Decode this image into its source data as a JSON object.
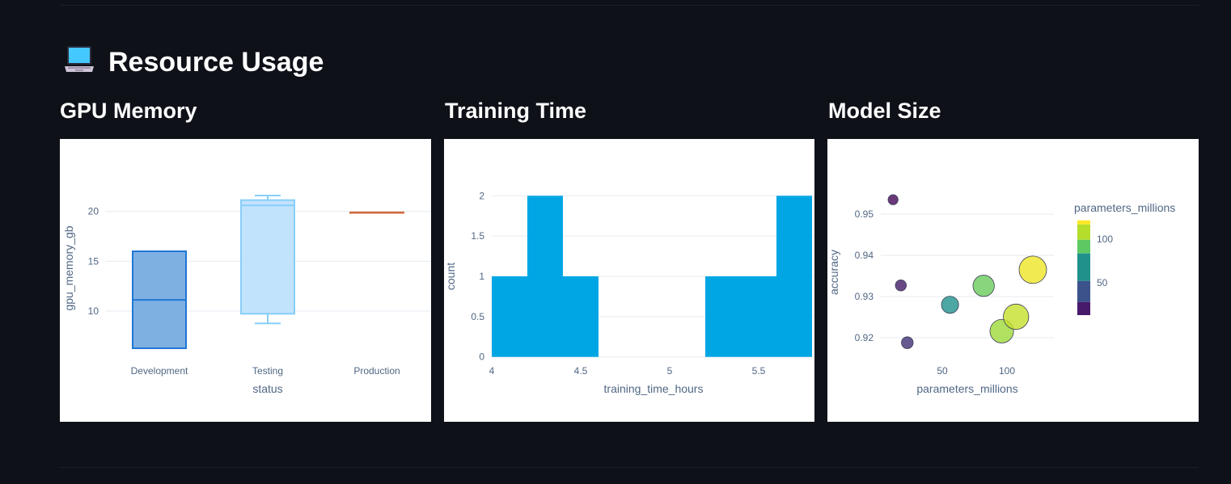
{
  "page": {
    "title": "Resource Usage",
    "title_icon": "laptop-icon"
  },
  "sections": [
    {
      "title": "GPU Memory"
    },
    {
      "title": "Training Time"
    },
    {
      "title": "Model Size"
    }
  ],
  "colors": {
    "background": "#0e1118",
    "card": "#ffffff",
    "development_box": "#1f77d4",
    "development_fill": "#7fb0e2",
    "testing_box": "#87cefa",
    "testing_fill": "#c2e3fc",
    "production_line": "#d2693c",
    "histogram_bar": "#00a6e4"
  },
  "chart_data": [
    {
      "type": "box",
      "title": "GPU Memory",
      "xlabel": "status",
      "ylabel": "gpu_memory_gb",
      "categories": [
        "Development",
        "Testing",
        "Production"
      ],
      "yticks": [
        "10",
        "15",
        "20"
      ],
      "series": [
        {
          "name": "Development",
          "min": 6.27,
          "q1": 6.27,
          "median": 11.13,
          "q3": 16.0,
          "max": 16.0
        },
        {
          "name": "Testing",
          "min": 8.76,
          "q1": 9.73,
          "median": 20.6,
          "q3": 21.14,
          "max": 21.6
        },
        {
          "name": "Production",
          "min": 19.9,
          "q1": 19.9,
          "median": 19.9,
          "q3": 19.9,
          "max": 19.9
        }
      ],
      "grid": true,
      "legend": "none"
    },
    {
      "type": "bar",
      "subtype": "histogram",
      "title": "Training Time",
      "xlabel": "training_time_hours",
      "ylabel": "count",
      "xticks": [
        "4",
        "4.5",
        "5",
        "5.5"
      ],
      "yticks": [
        "0",
        "0.5",
        "1",
        "1.5",
        "2"
      ],
      "bins": [
        {
          "start": 4.0,
          "end": 4.2,
          "count": 1
        },
        {
          "start": 4.2,
          "end": 4.4,
          "count": 2
        },
        {
          "start": 4.4,
          "end": 4.6,
          "count": 1
        },
        {
          "start": 4.6,
          "end": 4.8,
          "count": 0
        },
        {
          "start": 4.8,
          "end": 5.0,
          "count": 0
        },
        {
          "start": 5.0,
          "end": 5.2,
          "count": 0
        },
        {
          "start": 5.2,
          "end": 5.4,
          "count": 1
        },
        {
          "start": 5.4,
          "end": 5.6,
          "count": 1
        },
        {
          "start": 5.6,
          "end": 5.8,
          "count": 2
        }
      ],
      "ylim": [
        0,
        2
      ],
      "grid": true
    },
    {
      "type": "scatter",
      "title": "Model Size",
      "xlabel": "parameters_millions",
      "ylabel": "accuracy",
      "xticks": [
        "50",
        "100"
      ],
      "yticks": [
        "0.92",
        "0.93",
        "0.94",
        "0.95"
      ],
      "points": [
        {
          "x": 12,
          "y": 0.9535
        },
        {
          "x": 18,
          "y": 0.9327
        },
        {
          "x": 23,
          "y": 0.9188
        },
        {
          "x": 56,
          "y": 0.928
        },
        {
          "x": 82,
          "y": 0.9326
        },
        {
          "x": 96,
          "y": 0.9216
        },
        {
          "x": 107,
          "y": 0.9251
        },
        {
          "x": 120,
          "y": 0.9365
        }
      ],
      "size_by": "parameters_millions",
      "color_by": "parameters_millions",
      "colorbar": {
        "title": "parameters_millions",
        "ticks": [
          "50",
          "100"
        ],
        "colorscale": "viridis"
      },
      "grid": true
    }
  ]
}
